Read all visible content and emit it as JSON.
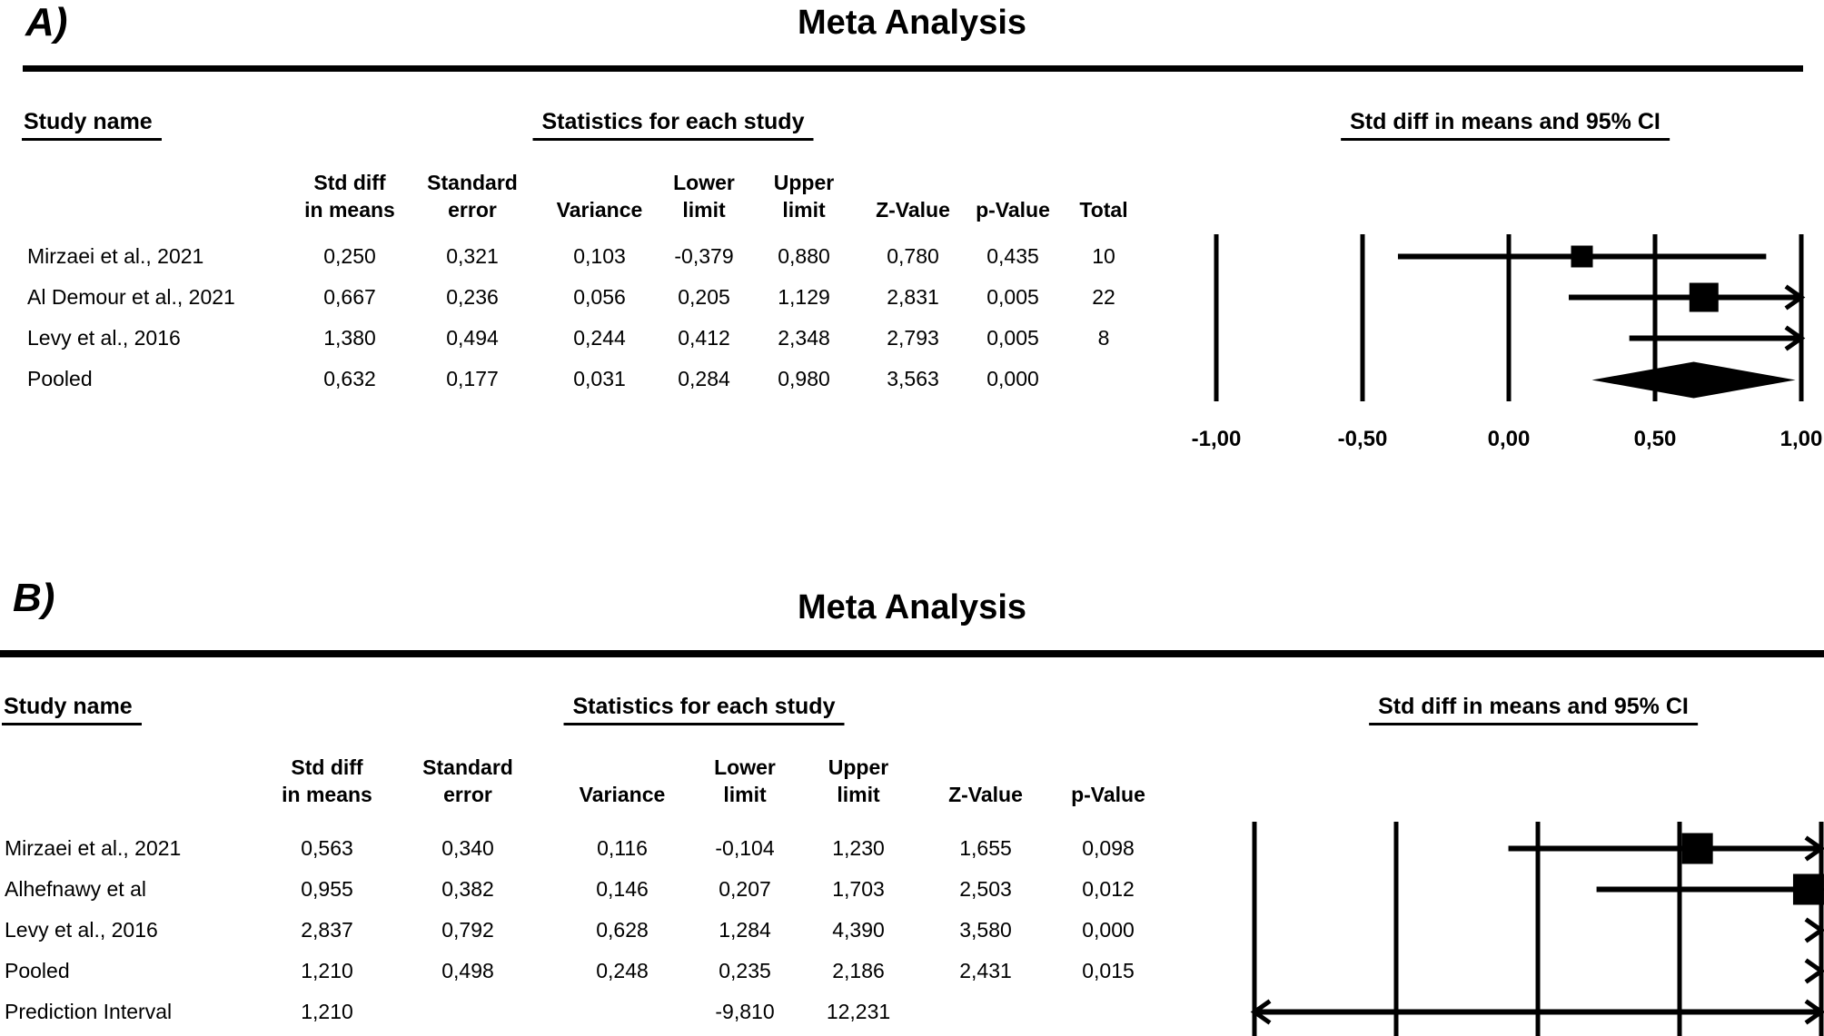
{
  "figure": {
    "background": "#ffffff",
    "ink": "#000000"
  },
  "panels": [
    {
      "panel_label": "A)",
      "title": "Meta Analysis",
      "study_header": "Study name",
      "stats_header": "Statistics for each study",
      "ci_header": "Std diff in means and 95% CI",
      "columns": [
        [
          "Std diff",
          "in means"
        ],
        [
          "Standard",
          "error"
        ],
        [
          "",
          "Variance"
        ],
        [
          "Lower",
          "limit"
        ],
        [
          "Upper",
          "limit"
        ],
        [
          "",
          "Z-Value"
        ],
        [
          "",
          "p-Value"
        ],
        [
          "",
          "Total"
        ]
      ],
      "rows": [
        {
          "study": "Mirzaei et al., 2021",
          "values": [
            "0,250",
            "0,321",
            "0,103",
            "-0,379",
            "0,880",
            "0,780",
            "0,435",
            "10"
          ]
        },
        {
          "study": "Al Demour et al., 2021",
          "values": [
            "0,667",
            "0,236",
            "0,056",
            "0,205",
            "1,129",
            "2,831",
            "0,005",
            "22"
          ]
        },
        {
          "study": "Levy et al., 2016",
          "values": [
            "1,380",
            "0,494",
            "0,244",
            "0,412",
            "2,348",
            "2,793",
            "0,005",
            "8"
          ]
        },
        {
          "study": "Pooled",
          "values": [
            "0,632",
            "0,177",
            "0,031",
            "0,284",
            "0,980",
            "3,563",
            "0,000",
            ""
          ]
        }
      ],
      "axis_ticks": [
        {
          "value": -1,
          "label": "-1,00"
        },
        {
          "value": -0.5,
          "label": "-0,50"
        },
        {
          "value": 0,
          "label": "0,00"
        },
        {
          "value": 0.5,
          "label": "0,50"
        },
        {
          "value": 1,
          "label": "1,00"
        }
      ],
      "plot": {
        "xmin": -1,
        "xmax": 1,
        "marks": [
          {
            "shape": "square",
            "point": 0.25,
            "lower": -0.379,
            "upper": 0.88,
            "size": 24
          },
          {
            "shape": "square",
            "point": 0.667,
            "lower": 0.205,
            "upper": 1.129,
            "size": 32
          },
          {
            "shape": "square",
            "point": 1.38,
            "lower": 0.412,
            "upper": 2.348,
            "size": 24
          },
          {
            "shape": "diamond",
            "point": 0.632,
            "lower": 0.284,
            "upper": 0.98
          }
        ]
      }
    },
    {
      "panel_label": "B)",
      "title": "Meta Analysis",
      "study_header": "Study name",
      "stats_header": "Statistics for each study",
      "ci_header": "Std diff in means and 95% CI",
      "columns": [
        [
          "Std diff",
          "in means"
        ],
        [
          "Standard",
          "error"
        ],
        [
          "",
          "Variance"
        ],
        [
          "Lower",
          "limit"
        ],
        [
          "Upper",
          "limit"
        ],
        [
          "",
          "Z-Value"
        ],
        [
          "",
          "p-Value"
        ]
      ],
      "rows": [
        {
          "study": "Mirzaei et al., 2021",
          "values": [
            "0,563",
            "0,340",
            "0,116",
            "-0,104",
            "1,230",
            "1,655",
            "0,098"
          ]
        },
        {
          "study": "Alhefnawy et al",
          "values": [
            "0,955",
            "0,382",
            "0,146",
            "0,207",
            "1,703",
            "2,503",
            "0,012"
          ]
        },
        {
          "study": "Levy et al., 2016",
          "values": [
            "2,837",
            "0,792",
            "0,628",
            "1,284",
            "4,390",
            "3,580",
            "0,000"
          ]
        },
        {
          "study": "Pooled",
          "values": [
            "1,210",
            "0,498",
            "0,248",
            "0,235",
            "2,186",
            "2,431",
            "0,015"
          ]
        },
        {
          "study": "Prediction Interval",
          "values": [
            "1,210",
            "",
            "",
            "-9,810",
            "12,231",
            "",
            ""
          ]
        }
      ],
      "axis_ticks": [],
      "plot": {
        "xmin": -1,
        "xmax": 1,
        "marks": [
          {
            "shape": "square",
            "point": 0.563,
            "lower": -0.104,
            "upper": 1.23,
            "size": 34
          },
          {
            "shape": "square",
            "point": 0.955,
            "lower": 0.207,
            "upper": 1.703,
            "size": 34
          },
          {
            "shape": "arrow-only",
            "point": 2.837,
            "lower": 1.284,
            "upper": 4.39
          },
          {
            "shape": "arrow-only",
            "point": 1.21,
            "lower": 0.235,
            "upper": 2.186
          },
          {
            "shape": "interval",
            "point": 1.21,
            "lower": -9.81,
            "upper": 12.231
          }
        ]
      }
    }
  ],
  "chart_data": [
    {
      "type": "scatter",
      "subtype": "forest-plot",
      "panel": "A",
      "title": "Meta Analysis",
      "xlabel": "Std diff in means and 95% CI",
      "xlim": [
        -1,
        1
      ],
      "x_ticks": [
        -1,
        -0.5,
        0,
        0.5,
        1
      ],
      "studies": [
        "Mirzaei et al., 2021",
        "Al Demour et al., 2021",
        "Levy et al., 2016",
        "Pooled"
      ],
      "std_diff_in_means": [
        0.25,
        0.667,
        1.38,
        0.632
      ],
      "standard_error": [
        0.321,
        0.236,
        0.494,
        0.177
      ],
      "variance": [
        0.103,
        0.056,
        0.244,
        0.031
      ],
      "lower_limit": [
        -0.379,
        0.205,
        0.412,
        0.284
      ],
      "upper_limit": [
        0.88,
        1.129,
        2.348,
        0.98
      ],
      "z_value": [
        0.78,
        2.831,
        2.793,
        3.563
      ],
      "p_value": [
        0.435,
        0.005,
        0.005,
        0.0
      ],
      "total": [
        10,
        22,
        8,
        null
      ]
    },
    {
      "type": "scatter",
      "subtype": "forest-plot",
      "panel": "B",
      "title": "Meta Analysis",
      "xlabel": "Std diff in means and 95% CI",
      "xlim": [
        -1,
        1
      ],
      "x_ticks": [
        -1,
        -0.5,
        0,
        0.5,
        1
      ],
      "studies": [
        "Mirzaei et al., 2021",
        "Alhefnawy et al",
        "Levy et al., 2016",
        "Pooled",
        "Prediction Interval"
      ],
      "std_diff_in_means": [
        0.563,
        0.955,
        2.837,
        1.21,
        1.21
      ],
      "standard_error": [
        0.34,
        0.382,
        0.792,
        0.498,
        null
      ],
      "variance": [
        0.116,
        0.146,
        0.628,
        0.248,
        null
      ],
      "lower_limit": [
        -0.104,
        0.207,
        1.284,
        0.235,
        -9.81
      ],
      "upper_limit": [
        1.23,
        1.703,
        4.39,
        2.186,
        12.231
      ],
      "z_value": [
        1.655,
        2.503,
        3.58,
        2.431,
        null
      ],
      "p_value": [
        0.098,
        0.012,
        0.0,
        0.015,
        null
      ]
    }
  ]
}
